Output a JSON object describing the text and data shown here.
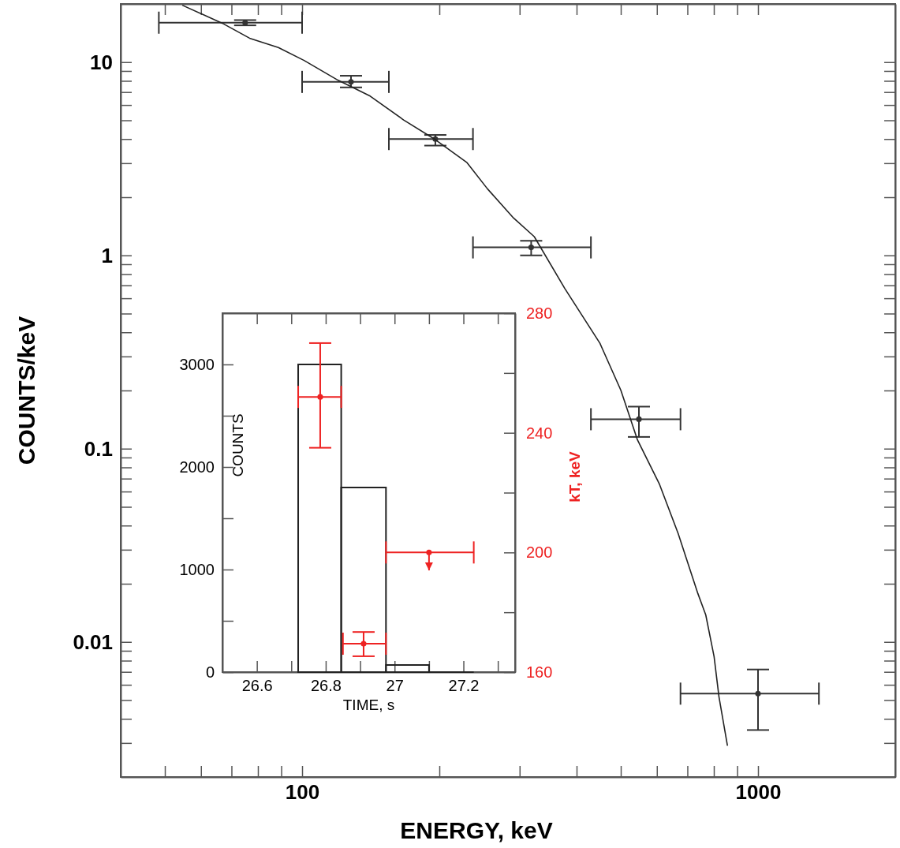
{
  "chart_data": [
    {
      "type": "scatter",
      "xlabel": "ENERGY, keV",
      "ylabel": "COUNTS/keV",
      "log": "xy",
      "grid": false,
      "xlim": [
        40,
        2000
      ],
      "ylim": [
        0.002,
        20
      ],
      "xticks": [
        {
          "value": 50,
          "label": null
        },
        {
          "value": 60,
          "label": null
        },
        {
          "value": 70,
          "label": null
        },
        {
          "value": 80,
          "label": null
        },
        {
          "value": 90,
          "label": null
        },
        100,
        {
          "value": 200,
          "label": null
        },
        {
          "value": 300,
          "label": null
        },
        {
          "value": 400,
          "label": null
        },
        {
          "value": 500,
          "label": null
        },
        {
          "value": 600,
          "label": null
        },
        {
          "value": 700,
          "label": null
        },
        {
          "value": 800,
          "label": null
        },
        {
          "value": 900,
          "label": null
        },
        1000
      ],
      "yticks": [
        {
          "value": 0.003,
          "label": null
        },
        {
          "value": 0.004,
          "label": null
        },
        {
          "value": 0.005,
          "label": null
        },
        {
          "value": 0.006,
          "label": null
        },
        {
          "value": 0.007,
          "label": null
        },
        {
          "value": 0.008,
          "label": null
        },
        {
          "value": 0.009,
          "label": null
        },
        0.01,
        {
          "value": 0.02,
          "label": null
        },
        {
          "value": 0.03,
          "label": null
        },
        {
          "value": 0.04,
          "label": null
        },
        {
          "value": 0.05,
          "label": null
        },
        {
          "value": 0.06,
          "label": null
        },
        {
          "value": 0.07,
          "label": null
        },
        {
          "value": 0.08,
          "label": null
        },
        {
          "value": 0.09,
          "label": null
        },
        0.1,
        {
          "value": 0.2,
          "label": null
        },
        {
          "value": 0.3,
          "label": null
        },
        {
          "value": 0.4,
          "label": null
        },
        {
          "value": 0.5,
          "label": null
        },
        {
          "value": 0.6,
          "label": null
        },
        {
          "value": 0.7,
          "label": null
        },
        {
          "value": 0.8,
          "label": null
        },
        {
          "value": 0.9,
          "label": null
        },
        1,
        {
          "value": 2,
          "label": null
        },
        {
          "value": 3,
          "label": null
        },
        {
          "value": 4,
          "label": null
        },
        {
          "value": 5,
          "label": null
        },
        {
          "value": 6,
          "label": null
        },
        {
          "value": 7,
          "label": null
        },
        {
          "value": 8,
          "label": null
        },
        {
          "value": 9,
          "label": null
        },
        10
      ],
      "series": [
        {
          "marker": "none",
          "color": "#333333",
          "x": [
            75,
            128,
            196,
            318,
            548,
            1000
          ],
          "values": [
            16,
            7.9,
            4.0,
            1.1,
            0.142,
            0.0054
          ],
          "errors": [
            [
              15.5,
              16.5
            ],
            [
              7.4,
              8.5
            ],
            [
              3.7,
              4.2
            ],
            [
              1.0,
              1.19
            ],
            [
              0.115,
              0.165
            ],
            [
              0.0035,
              0.0072
            ]
          ],
          "xerrors": [
            [
              48.5,
              100
            ],
            [
              100,
              155
            ],
            [
              155,
              237
            ],
            [
              237,
              430
            ],
            [
              430,
              676
            ],
            [
              676,
              1360
            ]
          ]
        },
        {
          "type": "line",
          "line_style": "solid",
          "color": "#222222",
          "x": [
            54.6,
            66.8,
            76.7,
            88.7,
            101,
            120,
            141,
            167,
            196,
            230,
            255,
            291,
            323,
            377,
            450,
            500,
            544,
            608,
            668,
            738,
            768,
            801,
            821,
            857
          ],
          "values": [
            19.7,
            15.9,
            13.3,
            11.9,
            10.2,
            8.05,
            6.67,
            5.02,
            3.97,
            3.02,
            2.21,
            1.56,
            1.25,
            0.673,
            0.351,
            0.201,
            0.111,
            0.0654,
            0.0364,
            0.0178,
            0.0138,
            0.0084,
            0.0052,
            0.0029
          ]
        }
      ]
    },
    {
      "type": "histogram",
      "xlabel": "TIME, s",
      "ylabel": "COUNTS",
      "y2label": "kT, keV",
      "grid": false,
      "xlim": [
        26.5,
        27.35
      ],
      "ylim": [
        0,
        3500
      ],
      "y2lim": [
        160,
        280
      ],
      "xticks": [
        26.6,
        {
          "value": 26.7,
          "label": null
        },
        26.8,
        {
          "value": 26.9,
          "label": null
        },
        27,
        {
          "value": 27.1,
          "label": null
        },
        27.2,
        {
          "value": 27.3,
          "label": null
        }
      ],
      "yticks": [
        0,
        {
          "value": 500,
          "label": null
        },
        1000,
        {
          "value": 1500,
          "label": null
        },
        2000,
        {
          "value": 2500,
          "label": null
        },
        3000
      ],
      "y2ticks": [
        160,
        {
          "value": 180,
          "label": null
        },
        200,
        {
          "value": 220,
          "label": null
        },
        240,
        {
          "value": 260,
          "label": null
        },
        280
      ],
      "series": [
        {
          "color": "#222222",
          "bins": [
            26.72,
            26.845,
            26.975,
            27.1,
            27.23
          ],
          "values": [
            3000,
            1800,
            70,
            0
          ]
        },
        {
          "type": "scatter",
          "marker": "none",
          "axis": "y2",
          "color": "#ee2222",
          "x": [
            26.784,
            26.91,
            27.1
          ],
          "values": [
            252,
            169.5,
            200
          ],
          "errors": [
            [
              235,
              270
            ],
            [
              165.3,
              173.4
            ],
            [
              194,
              200
            ]
          ],
          "xerrors": [
            [
              26.72,
              26.845
            ],
            [
              26.85,
              26.975
            ],
            [
              26.975,
              27.23
            ]
          ]
        }
      ]
    }
  ]
}
